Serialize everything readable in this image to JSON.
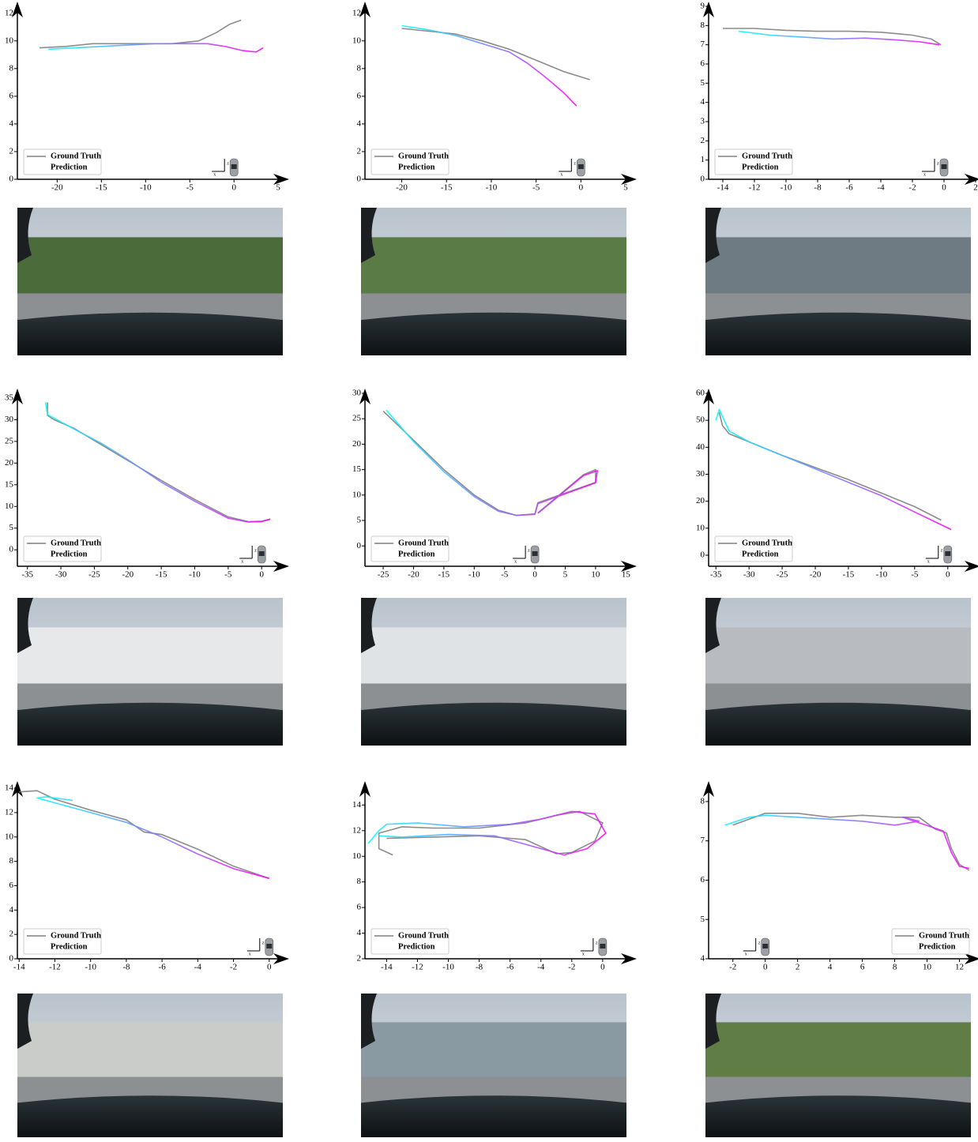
{
  "ego_frame_labels": {
    "x": "x",
    "z": "z"
  },
  "chart_data": [
    {
      "type": "line",
      "legend": "lower left",
      "xlim": [
        -24.5,
        5.7
      ],
      "ylim": [
        0,
        12.5
      ],
      "xticks": [
        -20,
        -15,
        -10,
        -5,
        0,
        5
      ],
      "yticks": [
        0,
        2,
        4,
        6,
        8,
        10,
        12
      ],
      "series": [
        {
          "name": "Ground Truth",
          "color": "#808080",
          "x": [
            -22,
            -19,
            -16,
            -13,
            -10,
            -7,
            -4,
            -2,
            -0.5,
            0.8
          ],
          "values": [
            9.5,
            9.6,
            9.8,
            9.8,
            9.8,
            9.8,
            10.0,
            10.6,
            11.2,
            11.5
          ]
        },
        {
          "name": "Prediction",
          "color": "#00e5ff",
          "gradient": [
            "#00ffff",
            "#ff00ff"
          ],
          "x": [
            -21,
            -18,
            -15,
            -12,
            -9,
            -6,
            -3,
            -1,
            1,
            2.5,
            3.3
          ],
          "values": [
            9.4,
            9.5,
            9.6,
            9.7,
            9.8,
            9.8,
            9.8,
            9.6,
            9.3,
            9.2,
            9.5
          ]
        }
      ]
    },
    {
      "type": "line",
      "legend": "lower left",
      "xlim": [
        -24.1,
        5.7
      ],
      "ylim": [
        0,
        12.5
      ],
      "xticks": [
        -20,
        -15,
        -10,
        -5,
        0,
        5
      ],
      "yticks": [
        0,
        2,
        4,
        6,
        8,
        10,
        12
      ],
      "series": [
        {
          "name": "Ground Truth",
          "color": "#808080",
          "x": [
            -20,
            -17,
            -14,
            -11,
            -8,
            -5,
            -2,
            0,
            1
          ],
          "values": [
            10.9,
            10.7,
            10.5,
            10.0,
            9.4,
            8.6,
            7.8,
            7.4,
            7.2
          ]
        },
        {
          "name": "Prediction",
          "color": "#00e5ff",
          "gradient": [
            "#00ffff",
            "#ff00ff"
          ],
          "x": [
            -20,
            -17,
            -14,
            -11,
            -8,
            -6,
            -4,
            -2,
            -0.5
          ],
          "values": [
            11.1,
            10.8,
            10.4,
            9.8,
            9.2,
            8.4,
            7.4,
            6.3,
            5.3
          ]
        }
      ]
    },
    {
      "type": "line",
      "legend": "lower left",
      "xlim": [
        -14.9,
        2
      ],
      "ylim": [
        0,
        9
      ],
      "xticks": [
        -14,
        -12,
        -10,
        -8,
        -6,
        -4,
        -2,
        0,
        2
      ],
      "yticks": [
        0,
        1,
        2,
        3,
        4,
        5,
        6,
        7,
        8,
        9
      ],
      "series": [
        {
          "name": "Ground Truth",
          "color": "#808080",
          "x": [
            -14,
            -12,
            -10,
            -8,
            -6,
            -4,
            -2,
            -0.8,
            -0.2
          ],
          "values": [
            7.85,
            7.85,
            7.75,
            7.7,
            7.7,
            7.65,
            7.5,
            7.3,
            7.0
          ]
        },
        {
          "name": "Prediction",
          "color": "#00e5ff",
          "gradient": [
            "#00ffff",
            "#ff00ff"
          ],
          "x": [
            -13,
            -11,
            -9,
            -7,
            -5,
            -3,
            -1.5,
            -0.3
          ],
          "values": [
            7.7,
            7.5,
            7.4,
            7.3,
            7.35,
            7.25,
            7.15,
            7.0
          ]
        }
      ]
    },
    {
      "type": "line",
      "legend": "lower left",
      "xlim": [
        -36.5,
        3.4
      ],
      "ylim": [
        -3.8,
        36.1
      ],
      "xticks": [
        -35,
        -30,
        -25,
        -20,
        -15,
        -10,
        -5,
        0
      ],
      "yticks": [
        0,
        5,
        10,
        15,
        20,
        25,
        30,
        35
      ],
      "series": [
        {
          "name": "Ground Truth",
          "color": "#808080",
          "x": [
            -32,
            -32,
            -31,
            -28,
            -25,
            -20,
            -15,
            -10,
            -5,
            -2,
            0,
            1.2
          ],
          "values": [
            34,
            31,
            30,
            28,
            25.2,
            20.6,
            16,
            11.6,
            7.6,
            6.5,
            6.6,
            7
          ]
        },
        {
          "name": "Prediction",
          "color": "#00e5ff",
          "gradient": [
            "#00ffff",
            "#ff00ff"
          ],
          "x": [
            -32.3,
            -32,
            -30,
            -27,
            -24,
            -20,
            -15,
            -10,
            -5,
            -2,
            0,
            1.3
          ],
          "values": [
            34,
            31.2,
            29.5,
            27,
            24.6,
            20.8,
            15.6,
            11.2,
            7.3,
            6.4,
            6.5,
            7.1
          ]
        }
      ]
    },
    {
      "type": "line",
      "legend": "lower left",
      "xlim": [
        -28,
        16
      ],
      "ylim": [
        -4,
        30
      ],
      "xticks": [
        -25,
        -20,
        -15,
        -10,
        -5,
        0,
        5,
        10,
        15
      ],
      "yticks": [
        0,
        5,
        10,
        15,
        20,
        25,
        30
      ],
      "series": [
        {
          "name": "Ground Truth",
          "color": "#808080",
          "x": [
            -25,
            -20,
            -15,
            -10,
            -6,
            -3,
            0,
            0.5,
            10,
            10,
            8,
            0.5
          ],
          "values": [
            26.5,
            20.8,
            15,
            10,
            7,
            6,
            6.3,
            8.5,
            12.5,
            15,
            14,
            6.5
          ]
        },
        {
          "name": "Prediction",
          "color": "#00e5ff",
          "gradient": [
            "#00ffff",
            "#ff00ff"
          ],
          "x": [
            -24.5,
            -20,
            -15,
            -10,
            -6,
            -3,
            0,
            0.5,
            10,
            10.3,
            8,
            0.5
          ],
          "values": [
            26.7,
            20.5,
            14.6,
            9.7,
            6.8,
            6,
            6.2,
            8.3,
            12.4,
            14.8,
            13.8,
            6.4
          ]
        }
      ]
    },
    {
      "type": "line",
      "legend": "lower left",
      "xlim": [
        -36.1,
        4.2
      ],
      "ylim": [
        -4.1,
        60
      ],
      "xticks": [
        -35,
        -30,
        -25,
        -20,
        -15,
        -10,
        -5,
        0
      ],
      "yticks": [
        0,
        10,
        20,
        30,
        40,
        50,
        60
      ],
      "series": [
        {
          "name": "Ground Truth",
          "color": "#808080",
          "x": [
            -34.5,
            -34,
            -33,
            -30,
            -25,
            -20,
            -15,
            -10,
            -5,
            -1
          ],
          "values": [
            53,
            48,
            45,
            42,
            37,
            32.5,
            28,
            23,
            18,
            13
          ]
        },
        {
          "name": "Prediction",
          "color": "#00e5ff",
          "gradient": [
            "#00ffff",
            "#ff00ff"
          ],
          "x": [
            -35,
            -34.5,
            -33,
            -30,
            -25,
            -20,
            -15,
            -10,
            -5,
            0.5
          ],
          "values": [
            50,
            54,
            46,
            42,
            37,
            32,
            27,
            22,
            16,
            9.5
          ]
        }
      ]
    },
    {
      "type": "line",
      "legend": "lower left",
      "xlim": [
        -14.1,
        0.85
      ],
      "ylim": [
        0,
        14.2
      ],
      "xticks": [
        -14,
        -12,
        -10,
        -8,
        -6,
        -4,
        -2,
        0
      ],
      "yticks": [
        0,
        2,
        4,
        6,
        8,
        10,
        12,
        14
      ],
      "series": [
        {
          "name": "Ground Truth",
          "color": "#808080",
          "x": [
            -14,
            -13,
            -12,
            -10,
            -8,
            -7,
            -6,
            -4,
            -2,
            0
          ],
          "values": [
            13.7,
            13.8,
            13.1,
            12.2,
            11.4,
            10.4,
            10.2,
            9.0,
            7.6,
            6.6
          ]
        },
        {
          "name": "Prediction",
          "color": "#00e5ff",
          "gradient": [
            "#00ffff",
            "#ff00ff"
          ],
          "x": [
            -11,
            -12.5,
            -13,
            -10,
            -8,
            -6,
            -4,
            -2,
            0
          ],
          "values": [
            13.0,
            13.3,
            13.2,
            12.0,
            11.2,
            10.0,
            8.6,
            7.4,
            6.6
          ]
        }
      ]
    },
    {
      "type": "line",
      "legend": "lower left",
      "xlim": [
        -15.4,
        1.9
      ],
      "ylim": [
        2,
        15.5
      ],
      "xticks": [
        -14,
        -12,
        -10,
        -8,
        -6,
        -4,
        -2,
        0
      ],
      "yticks": [
        2,
        4,
        6,
        8,
        10,
        12,
        14
      ],
      "series": [
        {
          "name": "Ground Truth",
          "color": "#808080",
          "x": [
            -13.6,
            -14.5,
            -14.5,
            -13,
            -11,
            -8,
            -5,
            -3,
            -1.5,
            0,
            -0.5,
            -2,
            -3,
            -5,
            -8,
            -11,
            -14
          ],
          "values": [
            10.1,
            10.6,
            11.8,
            12.3,
            12.2,
            12.2,
            12.6,
            13.2,
            13.5,
            12.6,
            11.2,
            10.3,
            10.2,
            11.3,
            11.6,
            11.5,
            11.4
          ]
        },
        {
          "name": "Prediction",
          "color": "#00e5ff",
          "gradient": [
            "#00ffff",
            "#ff00ff"
          ],
          "x": [
            -15.2,
            -14.5,
            -14,
            -12,
            -9,
            -6,
            -4,
            -2,
            -0.5,
            0.2,
            -1,
            -2.5,
            -4,
            -7,
            -10,
            -13,
            -14.5
          ],
          "values": [
            11.0,
            12.0,
            12.5,
            12.6,
            12.3,
            12.5,
            12.9,
            13.5,
            13.3,
            11.8,
            10.6,
            10.1,
            10.6,
            11.6,
            11.7,
            11.5,
            11.6
          ]
        }
      ]
    },
    {
      "type": "line",
      "legend": "lower right",
      "xlim": [
        -3.5,
        13
      ],
      "ylim": [
        4,
        8.4
      ],
      "xticks": [
        -2,
        0,
        2,
        4,
        6,
        8,
        10,
        12
      ],
      "yticks": [
        4,
        5,
        6,
        7,
        8
      ],
      "series": [
        {
          "name": "Ground Truth",
          "color": "#808080",
          "x": [
            -2,
            -1,
            0,
            2,
            4,
            6,
            8,
            9.5,
            10.5,
            11.2,
            11.5,
            12,
            12.6
          ],
          "values": [
            7.4,
            7.55,
            7.7,
            7.7,
            7.6,
            7.65,
            7.6,
            7.6,
            7.3,
            7.2,
            6.8,
            6.4,
            6.25
          ]
        },
        {
          "name": "Prediction",
          "color": "#00e5ff",
          "gradient": [
            "#00ffff",
            "#ff00ff"
          ],
          "x": [
            -2.5,
            -1,
            0,
            2,
            4,
            6,
            8,
            9.5,
            8.5,
            11,
            11.5,
            12,
            12.6
          ],
          "values": [
            7.4,
            7.6,
            7.65,
            7.6,
            7.55,
            7.5,
            7.4,
            7.5,
            7.6,
            7.25,
            6.7,
            6.35,
            6.3
          ]
        }
      ]
    }
  ]
}
